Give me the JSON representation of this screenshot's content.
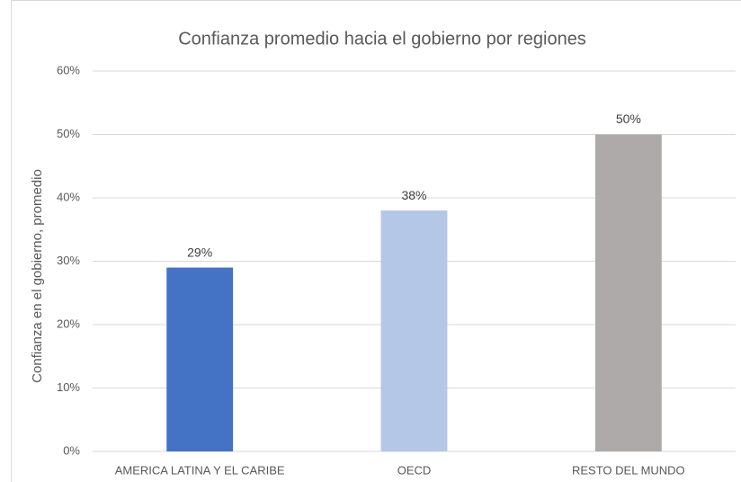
{
  "chart_data": {
    "type": "bar",
    "title": "Confianza promedio hacia el gobierno por regiones",
    "y_axis_label": "Confianza en el gobierno, promedio",
    "categories": [
      "AMERICA LATINA Y EL CARIBE",
      "OECD",
      "RESTO DEL MUNDO"
    ],
    "values": [
      29,
      38,
      50
    ],
    "value_labels": [
      "29%",
      "38%",
      "50%"
    ],
    "colors": [
      "#4472c4",
      "#b4c7e7",
      "#aeaaaa"
    ],
    "ylim": [
      0,
      60
    ],
    "yticks": [
      {
        "value": 0,
        "label": "0%"
      },
      {
        "value": 10,
        "label": "10%"
      },
      {
        "value": 20,
        "label": "20%"
      },
      {
        "value": 30,
        "label": "30%"
      },
      {
        "value": 40,
        "label": "40%"
      },
      {
        "value": 50,
        "label": "50%"
      },
      {
        "value": 60,
        "label": "60%"
      }
    ],
    "grid": true
  }
}
